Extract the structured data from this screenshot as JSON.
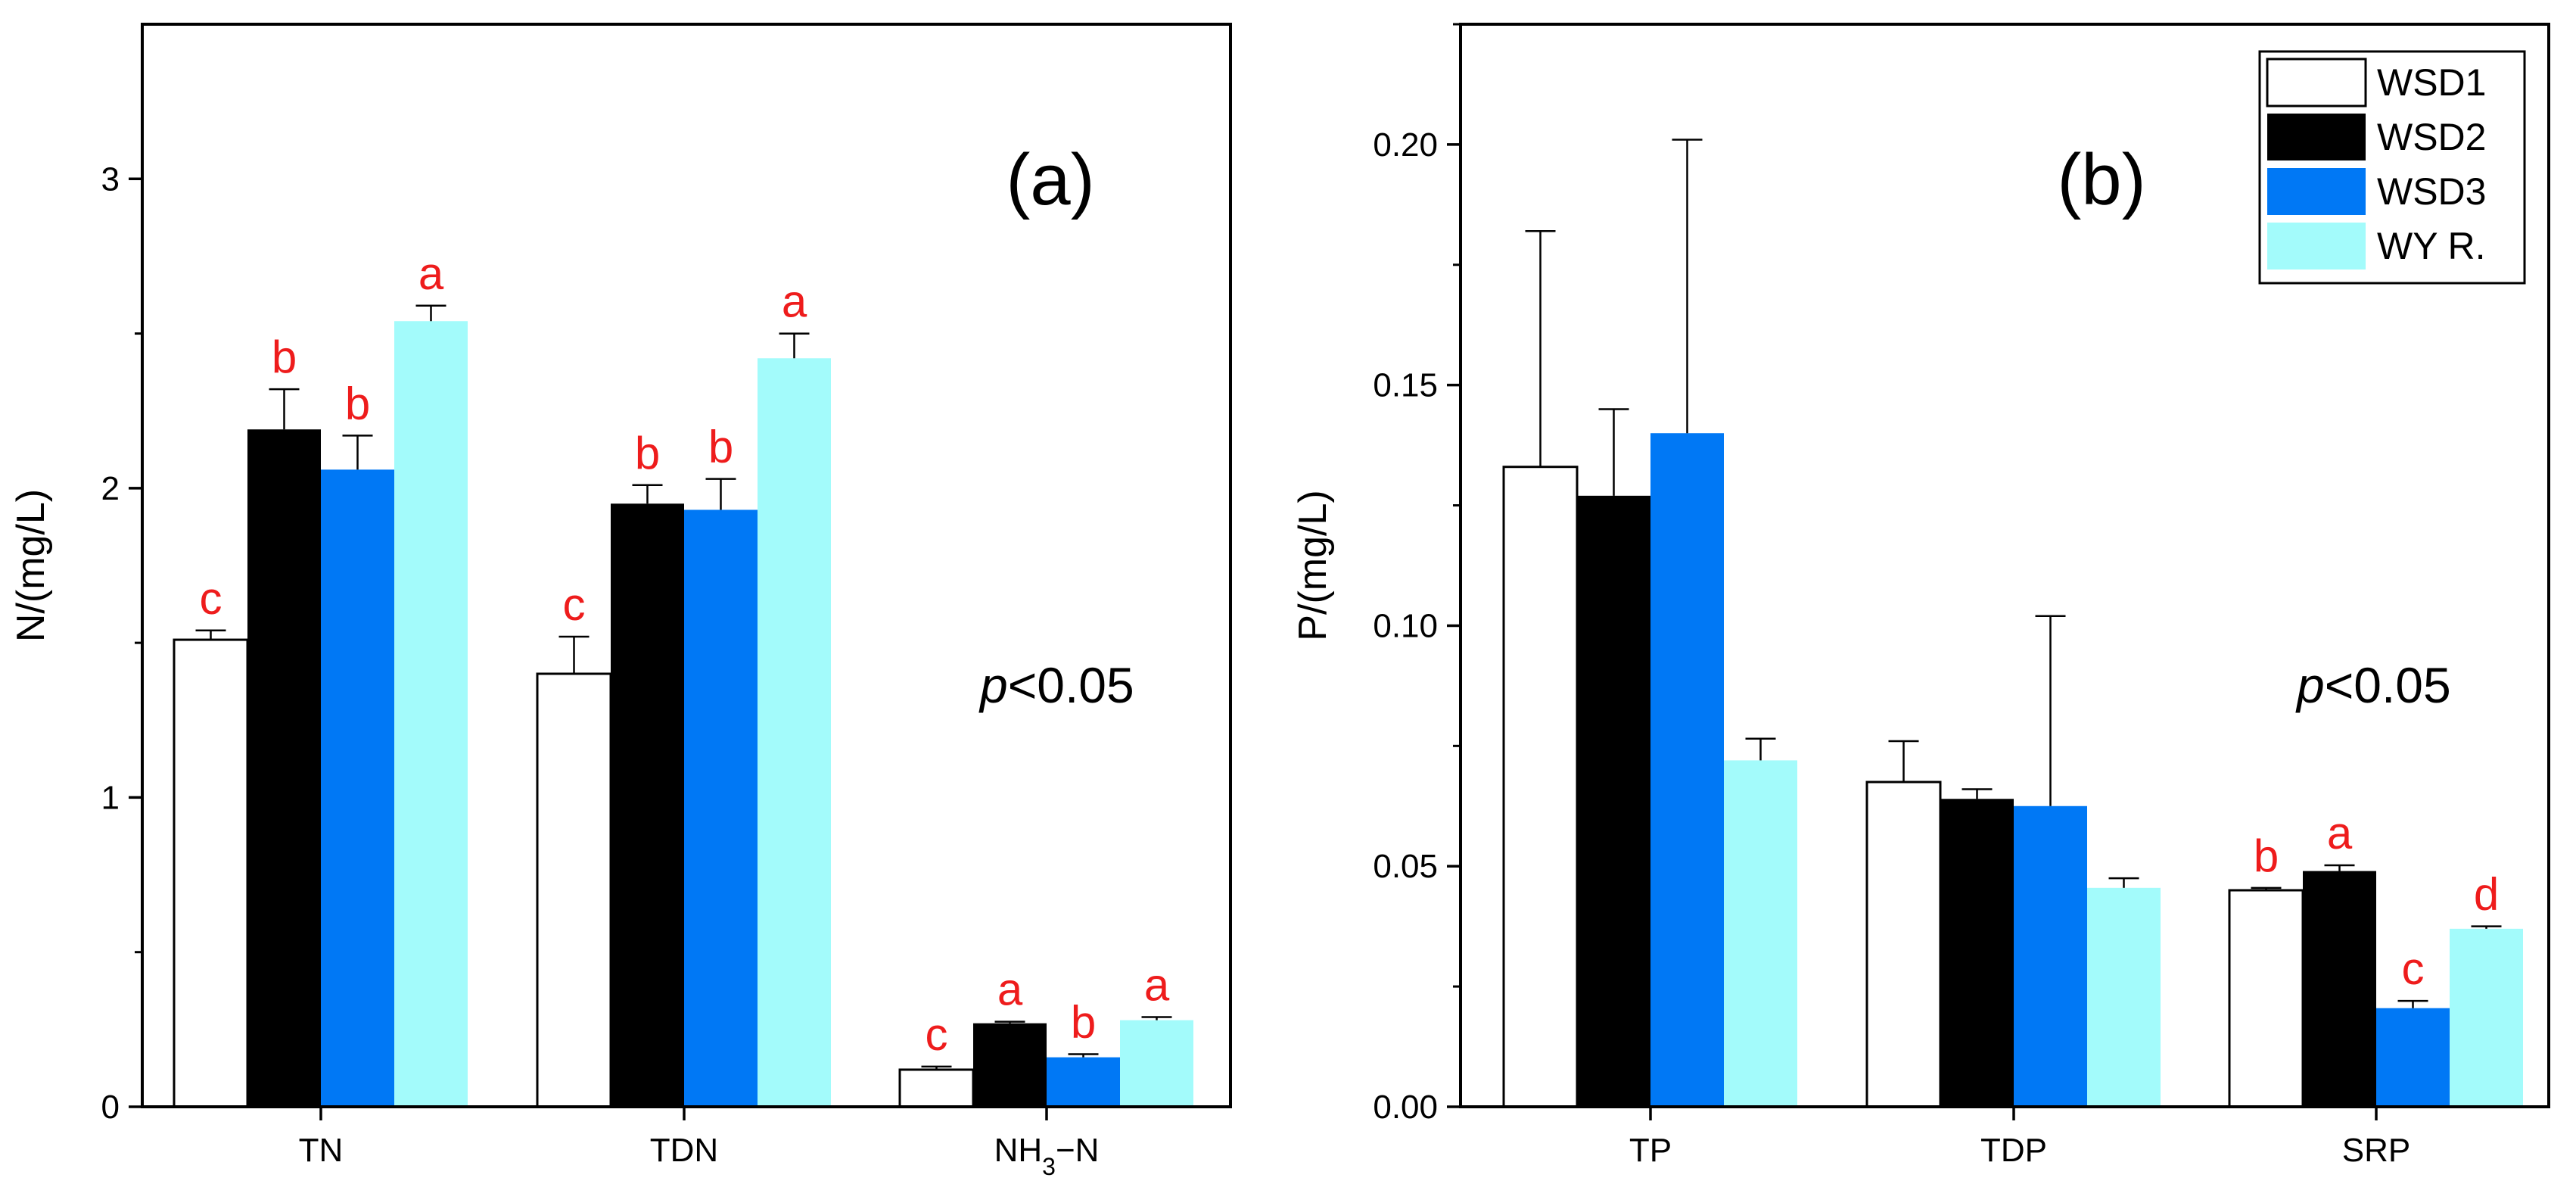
{
  "chart_data": [
    {
      "type": "bar",
      "panel_label": "(a)",
      "ylabel": "N/(mg/L)",
      "ylim": [
        0,
        3.5
      ],
      "yticks": [
        0,
        1,
        2,
        3
      ],
      "ytick_labels": [
        "0",
        "1",
        "2",
        "3"
      ],
      "categories": [
        "TN",
        "TDN",
        "NH3-N"
      ],
      "annotation": {
        "italic": "p",
        "rest": "<0.05"
      },
      "series": [
        {
          "name": "WSD1",
          "values": [
            1.51,
            1.4,
            0.12
          ],
          "errors": [
            0.03,
            0.12,
            0.01
          ],
          "letters": [
            "c",
            "c",
            "c"
          ]
        },
        {
          "name": "WSD2",
          "values": [
            2.19,
            1.95,
            0.27
          ],
          "errors": [
            0.13,
            0.06,
            0.005
          ],
          "letters": [
            "b",
            "b",
            "a"
          ]
        },
        {
          "name": "WSD3",
          "values": [
            2.06,
            1.93,
            0.16
          ],
          "errors": [
            0.11,
            0.1,
            0.01
          ],
          "letters": [
            "b",
            "b",
            "b"
          ]
        },
        {
          "name": "WY R.",
          "values": [
            2.54,
            2.42,
            0.28
          ],
          "errors": [
            0.05,
            0.08,
            0.01
          ],
          "letters": [
            "a",
            "a",
            "a"
          ]
        }
      ]
    },
    {
      "type": "bar",
      "panel_label": "(b)",
      "ylabel": "P/(mg/L)",
      "ylim": [
        0,
        0.225
      ],
      "yticks": [
        0,
        0.05,
        0.1,
        0.15,
        0.2
      ],
      "ytick_labels": [
        "0.00",
        "0.05",
        "0.10",
        "0.15",
        "0.20"
      ],
      "categories": [
        "TP",
        "TDP",
        "SRP"
      ],
      "annotation": {
        "italic": "p",
        "rest": "<0.05"
      },
      "series": [
        {
          "name": "WSD1",
          "values": [
            0.133,
            0.0675,
            0.045
          ],
          "errors": [
            0.049,
            0.0085,
            0.0005
          ],
          "letters": [
            "",
            "",
            "b"
          ]
        },
        {
          "name": "WSD2",
          "values": [
            0.127,
            0.064,
            0.049
          ],
          "errors": [
            0.018,
            0.002,
            0.0012
          ],
          "letters": [
            "",
            "",
            "a"
          ]
        },
        {
          "name": "WSD3",
          "values": [
            0.14,
            0.0625,
            0.0205
          ],
          "errors": [
            0.061,
            0.0395,
            0.0015
          ],
          "letters": [
            "",
            "",
            "c"
          ]
        },
        {
          "name": "WY R.",
          "values": [
            0.072,
            0.0455,
            0.037
          ],
          "errors": [
            0.0045,
            0.002,
            0.0005
          ],
          "letters": [
            "",
            "",
            "d"
          ]
        }
      ]
    }
  ],
  "legend": {
    "placement": "top-right",
    "entries": [
      "WSD1",
      "WSD2",
      "WSD3",
      "WY R."
    ]
  },
  "colors": {
    "WSD1": "#ffffff",
    "WSD2": "#000000",
    "WSD3": "#0078f5",
    "WY R.": "#a3fbfb",
    "letters": "#ee1c1c"
  }
}
